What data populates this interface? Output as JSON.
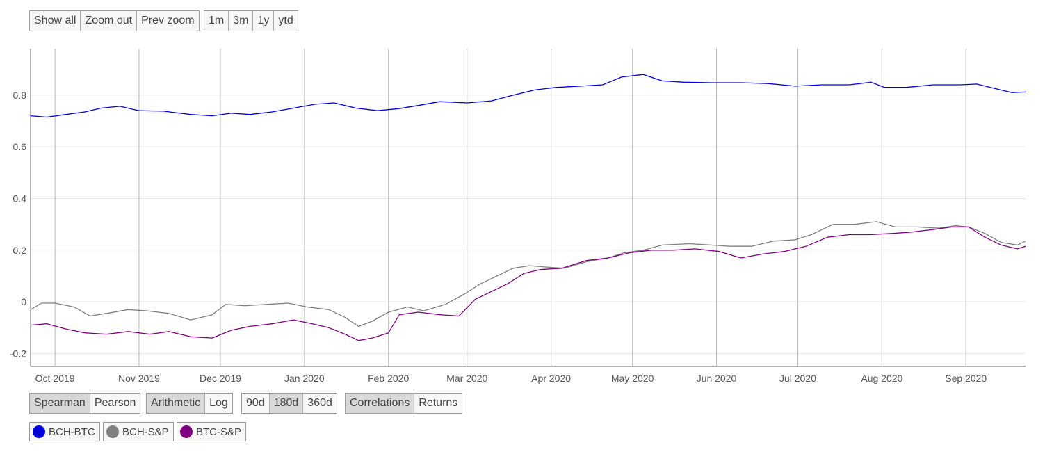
{
  "toolbar_top": {
    "zoom": [
      "Show all",
      "Zoom out",
      "Prev zoom"
    ],
    "ranges": [
      "1m",
      "3m",
      "1y",
      "ytd"
    ]
  },
  "toolbar_bottom": {
    "method": {
      "options": [
        "Spearman",
        "Pearson"
      ],
      "active": "Spearman"
    },
    "scale": {
      "options": [
        "Arithmetic",
        "Log"
      ],
      "active": "Arithmetic"
    },
    "window": {
      "options": [
        "90d",
        "180d",
        "360d"
      ],
      "active": "180d"
    },
    "mode": {
      "options": [
        "Correlations",
        "Returns"
      ],
      "active": "Correlations"
    }
  },
  "legend": [
    {
      "label": "BCH-BTC",
      "color": "#0000dd"
    },
    {
      "label": "BCH-S&P",
      "color": "#808080"
    },
    {
      "label": "BTC-S&P",
      "color": "#800080"
    }
  ],
  "chart_data": {
    "type": "line",
    "x_labels": [
      "Oct 2019",
      "Nov 2019",
      "Dec 2019",
      "Jan 2020",
      "Feb 2020",
      "Mar 2020",
      "Apr 2020",
      "May 2020",
      "Jun 2020",
      "Jul 2020",
      "Aug 2020",
      "Sep 2020"
    ],
    "y_ticks": [
      "0.8",
      "0.6",
      "0.4",
      "0.2",
      "0",
      "-0.2"
    ],
    "ylim": [
      -0.25,
      0.98
    ],
    "xlim": [
      "2019-09-22",
      "2020-09-23"
    ],
    "grid": {
      "vertical": true,
      "horizontal": true
    },
    "series": [
      {
        "name": "BCH-BTC",
        "color": "#0000dd",
        "points": [
          [
            "2019-09-22",
            0.72
          ],
          [
            "2019-09-28",
            0.715
          ],
          [
            "2019-10-05",
            0.725
          ],
          [
            "2019-10-12",
            0.735
          ],
          [
            "2019-10-18",
            0.75
          ],
          [
            "2019-10-25",
            0.757
          ],
          [
            "2019-11-01",
            0.74
          ],
          [
            "2019-11-10",
            0.738
          ],
          [
            "2019-11-20",
            0.725
          ],
          [
            "2019-11-28",
            0.72
          ],
          [
            "2019-12-05",
            0.73
          ],
          [
            "2019-12-12",
            0.725
          ],
          [
            "2019-12-20",
            0.735
          ],
          [
            "2019-12-28",
            0.75
          ],
          [
            "2020-01-05",
            0.765
          ],
          [
            "2020-01-12",
            0.77
          ],
          [
            "2020-01-20",
            0.75
          ],
          [
            "2020-01-28",
            0.74
          ],
          [
            "2020-02-05",
            0.748
          ],
          [
            "2020-02-12",
            0.76
          ],
          [
            "2020-02-20",
            0.775
          ],
          [
            "2020-03-01",
            0.77
          ],
          [
            "2020-03-10",
            0.778
          ],
          [
            "2020-03-18",
            0.8
          ],
          [
            "2020-03-26",
            0.82
          ],
          [
            "2020-04-03",
            0.83
          ],
          [
            "2020-04-12",
            0.835
          ],
          [
            "2020-04-20",
            0.84
          ],
          [
            "2020-04-27",
            0.87
          ],
          [
            "2020-05-05",
            0.88
          ],
          [
            "2020-05-12",
            0.855
          ],
          [
            "2020-05-20",
            0.85
          ],
          [
            "2020-05-30",
            0.848
          ],
          [
            "2020-06-10",
            0.848
          ],
          [
            "2020-06-20",
            0.845
          ],
          [
            "2020-06-30",
            0.835
          ],
          [
            "2020-07-10",
            0.84
          ],
          [
            "2020-07-20",
            0.84
          ],
          [
            "2020-07-28",
            0.85
          ],
          [
            "2020-08-02",
            0.83
          ],
          [
            "2020-08-10",
            0.83
          ],
          [
            "2020-08-20",
            0.84
          ],
          [
            "2020-08-30",
            0.84
          ],
          [
            "2020-09-05",
            0.843
          ],
          [
            "2020-09-12",
            0.825
          ],
          [
            "2020-09-18",
            0.81
          ],
          [
            "2020-09-23",
            0.812
          ]
        ]
      },
      {
        "name": "BCH-S&P",
        "color": "#808080",
        "points": [
          [
            "2019-09-22",
            -0.03
          ],
          [
            "2019-09-26",
            -0.005
          ],
          [
            "2019-10-01",
            -0.005
          ],
          [
            "2019-10-08",
            -0.02
          ],
          [
            "2019-10-14",
            -0.055
          ],
          [
            "2019-10-20",
            -0.045
          ],
          [
            "2019-10-28",
            -0.03
          ],
          [
            "2019-11-04",
            -0.035
          ],
          [
            "2019-11-12",
            -0.045
          ],
          [
            "2019-11-20",
            -0.07
          ],
          [
            "2019-11-28",
            -0.05
          ],
          [
            "2019-12-03",
            -0.01
          ],
          [
            "2019-12-10",
            -0.015
          ],
          [
            "2019-12-18",
            -0.01
          ],
          [
            "2019-12-26",
            -0.005
          ],
          [
            "2020-01-02",
            -0.02
          ],
          [
            "2020-01-10",
            -0.03
          ],
          [
            "2020-01-16",
            -0.06
          ],
          [
            "2020-01-21",
            -0.095
          ],
          [
            "2020-01-26",
            -0.075
          ],
          [
            "2020-02-01",
            -0.04
          ],
          [
            "2020-02-08",
            -0.02
          ],
          [
            "2020-02-14",
            -0.035
          ],
          [
            "2020-02-22",
            -0.01
          ],
          [
            "2020-02-29",
            0.03
          ],
          [
            "2020-03-06",
            0.07
          ],
          [
            "2020-03-12",
            0.1
          ],
          [
            "2020-03-18",
            0.13
          ],
          [
            "2020-03-24",
            0.14
          ],
          [
            "2020-03-30",
            0.135
          ],
          [
            "2020-04-06",
            0.13
          ],
          [
            "2020-04-14",
            0.155
          ],
          [
            "2020-04-22",
            0.17
          ],
          [
            "2020-04-28",
            0.19
          ],
          [
            "2020-05-05",
            0.2
          ],
          [
            "2020-05-12",
            0.22
          ],
          [
            "2020-05-22",
            0.225
          ],
          [
            "2020-05-30",
            0.22
          ],
          [
            "2020-06-06",
            0.215
          ],
          [
            "2020-06-14",
            0.215
          ],
          [
            "2020-06-22",
            0.235
          ],
          [
            "2020-06-30",
            0.24
          ],
          [
            "2020-07-06",
            0.26
          ],
          [
            "2020-07-14",
            0.3
          ],
          [
            "2020-07-22",
            0.3
          ],
          [
            "2020-07-30",
            0.31
          ],
          [
            "2020-08-06",
            0.29
          ],
          [
            "2020-08-14",
            0.29
          ],
          [
            "2020-08-22",
            0.285
          ],
          [
            "2020-08-28",
            0.295
          ],
          [
            "2020-09-02",
            0.29
          ],
          [
            "2020-09-08",
            0.265
          ],
          [
            "2020-09-14",
            0.23
          ],
          [
            "2020-09-20",
            0.22
          ],
          [
            "2020-09-23",
            0.235
          ]
        ]
      },
      {
        "name": "BTC-S&P",
        "color": "#800080",
        "points": [
          [
            "2019-09-22",
            -0.09
          ],
          [
            "2019-09-28",
            -0.085
          ],
          [
            "2019-10-05",
            -0.105
          ],
          [
            "2019-10-12",
            -0.12
          ],
          [
            "2019-10-20",
            -0.125
          ],
          [
            "2019-10-28",
            -0.115
          ],
          [
            "2019-11-05",
            -0.125
          ],
          [
            "2019-11-12",
            -0.115
          ],
          [
            "2019-11-20",
            -0.135
          ],
          [
            "2019-11-28",
            -0.14
          ],
          [
            "2019-12-05",
            -0.11
          ],
          [
            "2019-12-12",
            -0.095
          ],
          [
            "2019-12-20",
            -0.085
          ],
          [
            "2019-12-28",
            -0.07
          ],
          [
            "2020-01-04",
            -0.085
          ],
          [
            "2020-01-10",
            -0.1
          ],
          [
            "2020-01-16",
            -0.125
          ],
          [
            "2020-01-21",
            -0.15
          ],
          [
            "2020-01-26",
            -0.14
          ],
          [
            "2020-02-01",
            -0.12
          ],
          [
            "2020-02-05",
            -0.05
          ],
          [
            "2020-02-12",
            -0.04
          ],
          [
            "2020-02-20",
            -0.05
          ],
          [
            "2020-02-27",
            -0.055
          ],
          [
            "2020-03-04",
            0.01
          ],
          [
            "2020-03-10",
            0.04
          ],
          [
            "2020-03-16",
            0.07
          ],
          [
            "2020-03-22",
            0.11
          ],
          [
            "2020-03-28",
            0.125
          ],
          [
            "2020-04-05",
            0.13
          ],
          [
            "2020-04-14",
            0.16
          ],
          [
            "2020-04-22",
            0.17
          ],
          [
            "2020-04-30",
            0.19
          ],
          [
            "2020-05-08",
            0.2
          ],
          [
            "2020-05-16",
            0.2
          ],
          [
            "2020-05-24",
            0.205
          ],
          [
            "2020-06-02",
            0.195
          ],
          [
            "2020-06-10",
            0.17
          ],
          [
            "2020-06-18",
            0.185
          ],
          [
            "2020-06-26",
            0.195
          ],
          [
            "2020-07-04",
            0.215
          ],
          [
            "2020-07-12",
            0.25
          ],
          [
            "2020-07-20",
            0.26
          ],
          [
            "2020-07-28",
            0.26
          ],
          [
            "2020-08-05",
            0.265
          ],
          [
            "2020-08-12",
            0.27
          ],
          [
            "2020-08-20",
            0.28
          ],
          [
            "2020-08-27",
            0.29
          ],
          [
            "2020-09-02",
            0.29
          ],
          [
            "2020-09-08",
            0.25
          ],
          [
            "2020-09-14",
            0.22
          ],
          [
            "2020-09-20",
            0.205
          ],
          [
            "2020-09-23",
            0.215
          ]
        ]
      }
    ]
  }
}
